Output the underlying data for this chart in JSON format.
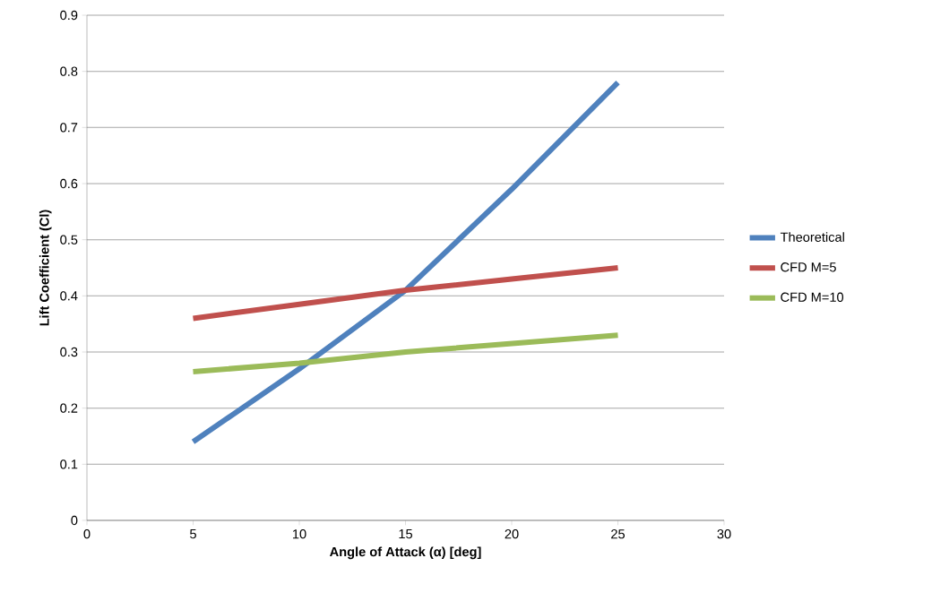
{
  "chart_data": {
    "type": "line",
    "xlabel": "Angle of Attack (α) [deg]",
    "ylabel": "Lift Coefficient (Cl)",
    "x": [
      5,
      10,
      15,
      20,
      25
    ],
    "series": [
      {
        "name": "Theoretical",
        "color": "#4f81bd",
        "values": [
          0.14,
          0.27,
          0.41,
          0.59,
          0.78
        ]
      },
      {
        "name": "CFD M=5",
        "color": "#c0504d",
        "values": [
          0.36,
          0.385,
          0.41,
          0.43,
          0.45
        ]
      },
      {
        "name": "CFD M=10",
        "color": "#9bbb59",
        "values": [
          0.265,
          0.28,
          0.3,
          0.315,
          0.33
        ]
      }
    ],
    "xlim": [
      0,
      30
    ],
    "ylim": [
      0,
      0.9
    ],
    "xticks": [
      0,
      5,
      10,
      15,
      20,
      25,
      30
    ],
    "yticks": [
      0,
      0.1,
      0.2,
      0.3,
      0.4,
      0.5,
      0.6,
      0.7,
      0.8,
      0.9
    ],
    "grid": "y",
    "legend": "right"
  }
}
